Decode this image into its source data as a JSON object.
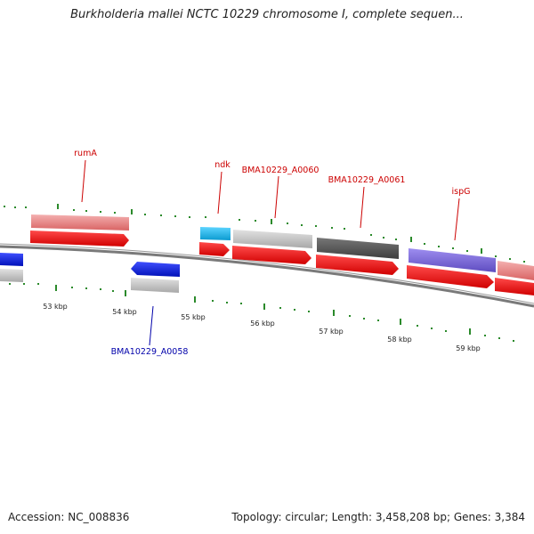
{
  "title": "Burkholderia mallei NCTC 10229 chromosome I, complete sequen...",
  "footer": {
    "accession": "Accession: NC_008836",
    "summary": "Topology: circular; Length: 3,458,208 bp; Genes: 3,384"
  },
  "ticks": [
    "53 kbp",
    "54 kbp",
    "55 kbp",
    "56 kbp",
    "57 kbp",
    "58 kbp",
    "59 kbp"
  ],
  "gene_labels": [
    {
      "text": "rumA",
      "color": "#cc0000"
    },
    {
      "text": "ndk",
      "color": "#cc0000"
    },
    {
      "text": "BMA10229_A0060",
      "color": "#cc0000"
    },
    {
      "text": "BMA10229_A0061",
      "color": "#cc0000"
    },
    {
      "text": "ispG",
      "color": "#cc0000"
    },
    {
      "text": "BMA10229_A0058",
      "color": "#0000aa"
    }
  ],
  "colors": {
    "backbone": "#777777",
    "cds": "#ee1111",
    "tick": "#228822",
    "gene_pink": "#e88080",
    "gene_grey": "#c0c0c0",
    "gene_dark": "#555555",
    "gene_purple": "#7d6ad6",
    "gene_cyan": "#22b8e8",
    "gene_blue": "#1020e0"
  }
}
